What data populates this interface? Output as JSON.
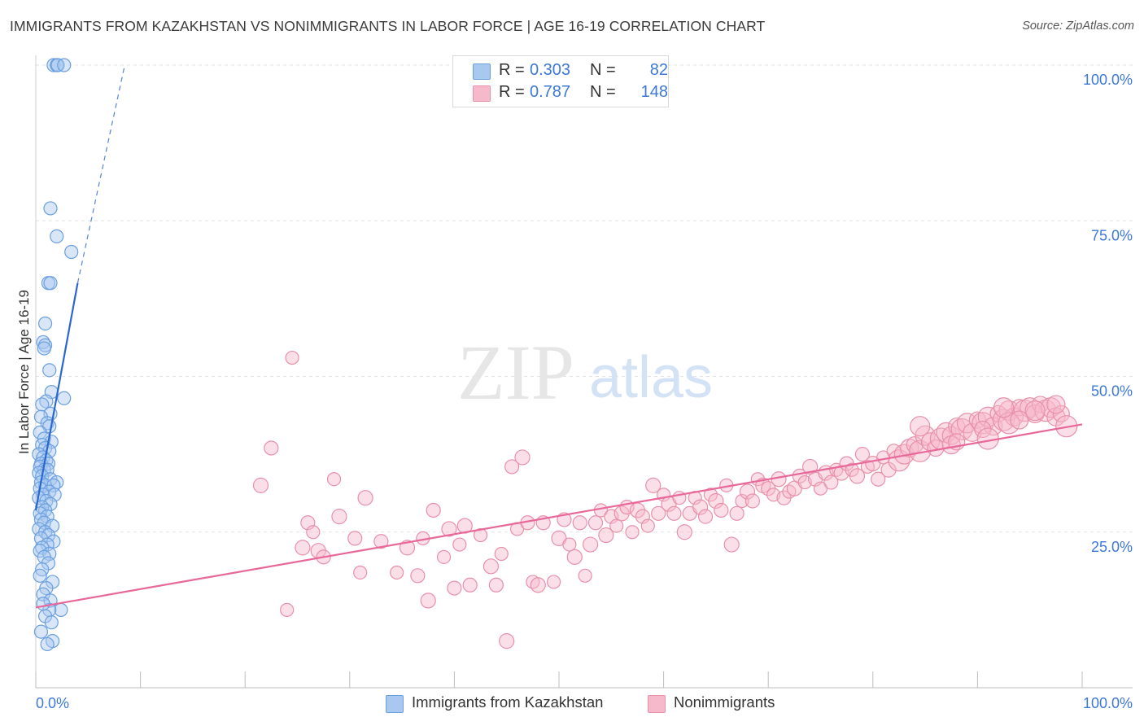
{
  "title": "IMMIGRANTS FROM KAZAKHSTAN VS NONIMMIGRANTS IN LABOR FORCE | AGE 16-19 CORRELATION CHART",
  "source": "Source: ZipAtlas.com",
  "watermark": {
    "zip": "ZIP",
    "atlas": "atlas"
  },
  "legend": {
    "rows": [
      {
        "r_label": "R =",
        "r_value": "0.303",
        "n_label": "N =",
        "n_value": "82",
        "color": "#a8c8f0"
      },
      {
        "r_label": "R =",
        "r_value": "0.787",
        "n_label": "N =",
        "n_value": "148",
        "color": "#f6b8cb"
      }
    ]
  },
  "bottom_legend": [
    {
      "label": "Immigrants from Kazakhstan",
      "color": "#a8c8f0"
    },
    {
      "label": "Nonimmigrants",
      "color": "#f6b8cb"
    }
  ],
  "colors": {
    "blue_fill": "#a8c8f0",
    "blue_stroke": "#6a9fe0",
    "blue_line": "#2a68d0",
    "pink_fill": "#f6b8cb",
    "pink_stroke": "#e890aa",
    "pink_line": "#e8689a",
    "axis_text": "#3d78d8",
    "grid": "#e2e2e2"
  },
  "chart_data": {
    "type": "scatter",
    "title": "IMMIGRANTS FROM KAZAKHSTAN VS NONIMMIGRANTS IN LABOR FORCE | AGE 16-19 CORRELATION CHART",
    "xlabel": "",
    "ylabel": "In Labor Force | Age 16-19",
    "xlim": [
      0,
      100
    ],
    "ylim": [
      0,
      100
    ],
    "x_ticks_labeled": [
      "0.0%",
      "100.0%"
    ],
    "y_ticks": [
      25,
      50,
      75,
      100
    ],
    "y_tick_labels": [
      "25.0%",
      "50.0%",
      "75.0%",
      "100.0%"
    ],
    "grid": true,
    "legend_position": "top-center",
    "series": [
      {
        "name": "Immigrants from Kazakhstan",
        "color": "#a8c8f0",
        "trend": {
          "x": [
            0.0,
            4.0
          ],
          "y": [
            28.5,
            65.0
          ],
          "dashed_extension_to": [
            8.5,
            100.0
          ]
        },
        "points": [
          [
            1.7,
            100
          ],
          [
            2.0,
            100
          ],
          [
            2.1,
            100
          ],
          [
            2.7,
            100
          ],
          [
            1.4,
            77.0
          ],
          [
            2.0,
            72.5
          ],
          [
            3.4,
            70.0
          ],
          [
            1.2,
            65.0
          ],
          [
            1.4,
            65.0
          ],
          [
            0.9,
            58.5
          ],
          [
            0.7,
            55.5
          ],
          [
            0.9,
            55.0
          ],
          [
            0.8,
            54.5
          ],
          [
            1.3,
            51.0
          ],
          [
            1.5,
            47.5
          ],
          [
            2.7,
            46.5
          ],
          [
            1.0,
            46.0
          ],
          [
            0.6,
            45.5
          ],
          [
            1.4,
            44.0
          ],
          [
            0.5,
            43.5
          ],
          [
            1.1,
            42.5
          ],
          [
            1.3,
            42.0
          ],
          [
            0.4,
            41.0
          ],
          [
            0.8,
            40.0
          ],
          [
            1.5,
            39.5
          ],
          [
            0.6,
            39.0
          ],
          [
            0.9,
            38.5
          ],
          [
            1.3,
            38.0
          ],
          [
            0.3,
            37.5
          ],
          [
            0.7,
            37.0
          ],
          [
            1.0,
            36.5
          ],
          [
            0.5,
            36.0
          ],
          [
            1.2,
            36.0
          ],
          [
            0.4,
            35.5
          ],
          [
            0.8,
            35.0
          ],
          [
            1.1,
            35.0
          ],
          [
            0.3,
            34.5
          ],
          [
            0.6,
            34.0
          ],
          [
            1.4,
            33.5
          ],
          [
            2.0,
            33.0
          ],
          [
            0.5,
            33.0
          ],
          [
            0.9,
            32.5
          ],
          [
            1.7,
            32.5
          ],
          [
            0.4,
            32.0
          ],
          [
            1.3,
            31.5
          ],
          [
            0.7,
            31.0
          ],
          [
            1.8,
            31.0
          ],
          [
            0.3,
            30.5
          ],
          [
            1.0,
            30.0
          ],
          [
            1.4,
            29.5
          ],
          [
            0.6,
            29.0
          ],
          [
            0.9,
            28.5
          ],
          [
            0.4,
            28.0
          ],
          [
            1.1,
            27.5
          ],
          [
            0.5,
            27.0
          ],
          [
            0.8,
            26.5
          ],
          [
            1.6,
            26.0
          ],
          [
            0.3,
            25.5
          ],
          [
            0.9,
            25.0
          ],
          [
            1.2,
            24.5
          ],
          [
            0.5,
            24.0
          ],
          [
            1.7,
            23.5
          ],
          [
            1.1,
            23.0
          ],
          [
            0.6,
            22.5
          ],
          [
            0.4,
            22.0
          ],
          [
            1.3,
            21.5
          ],
          [
            0.8,
            21.0
          ],
          [
            1.2,
            20.0
          ],
          [
            0.6,
            19.0
          ],
          [
            1.6,
            17.0
          ],
          [
            1.0,
            16.0
          ],
          [
            0.7,
            15.0
          ],
          [
            1.4,
            14.0
          ],
          [
            2.4,
            12.5
          ],
          [
            1.3,
            12.5
          ],
          [
            0.9,
            11.5
          ],
          [
            1.5,
            10.5
          ],
          [
            1.6,
            7.5
          ],
          [
            1.1,
            7.0
          ],
          [
            0.5,
            9.0
          ],
          [
            0.7,
            13.5
          ],
          [
            0.4,
            18.0
          ]
        ]
      },
      {
        "name": "Nonimmigrants",
        "color": "#f6b8cb",
        "trend": {
          "x": [
            0.0,
            100.0
          ],
          "y": [
            12.9,
            42.3
          ]
        },
        "points": [
          [
            24.0,
            12.5
          ],
          [
            21.5,
            32.5
          ],
          [
            22.5,
            38.5
          ],
          [
            24.5,
            53.0
          ],
          [
            25.5,
            22.5
          ],
          [
            26.0,
            26.5
          ],
          [
            26.5,
            25.0
          ],
          [
            27.0,
            22.0
          ],
          [
            27.5,
            21.0
          ],
          [
            28.5,
            33.5
          ],
          [
            29.0,
            27.5
          ],
          [
            30.5,
            24.0
          ],
          [
            31.0,
            18.5
          ],
          [
            31.5,
            30.5
          ],
          [
            33.0,
            23.5
          ],
          [
            34.5,
            18.5
          ],
          [
            35.5,
            22.5
          ],
          [
            36.5,
            18.0
          ],
          [
            37.0,
            24.0
          ],
          [
            37.5,
            14.0
          ],
          [
            38.0,
            28.5
          ],
          [
            39.0,
            21.0
          ],
          [
            39.5,
            25.5
          ],
          [
            40.0,
            16.0
          ],
          [
            40.5,
            23.0
          ],
          [
            41.0,
            26.0
          ],
          [
            41.5,
            16.5
          ],
          [
            42.5,
            24.5
          ],
          [
            43.5,
            19.5
          ],
          [
            44.0,
            16.5
          ],
          [
            44.5,
            21.5
          ],
          [
            45.0,
            7.5
          ],
          [
            45.5,
            35.5
          ],
          [
            46.0,
            25.5
          ],
          [
            46.5,
            37.0
          ],
          [
            47.0,
            26.5
          ],
          [
            47.5,
            17.0
          ],
          [
            48.0,
            16.5
          ],
          [
            48.5,
            26.5
          ],
          [
            49.5,
            17.0
          ],
          [
            50.0,
            24.0
          ],
          [
            50.5,
            27.0
          ],
          [
            51.0,
            23.0
          ],
          [
            51.5,
            21.0
          ],
          [
            52.0,
            26.5
          ],
          [
            52.5,
            18.0
          ],
          [
            53.0,
            23.0
          ],
          [
            53.5,
            26.5
          ],
          [
            54.0,
            28.5
          ],
          [
            54.5,
            24.5
          ],
          [
            55.0,
            27.5
          ],
          [
            55.5,
            26.0
          ],
          [
            56.0,
            28.0
          ],
          [
            56.5,
            29.0
          ],
          [
            57.0,
            25.0
          ],
          [
            57.5,
            28.5
          ],
          [
            58.0,
            27.5
          ],
          [
            58.5,
            26.0
          ],
          [
            59.0,
            32.5
          ],
          [
            59.5,
            28.0
          ],
          [
            60.0,
            31.0
          ],
          [
            60.5,
            29.5
          ],
          [
            61.0,
            28.0
          ],
          [
            61.5,
            30.5
          ],
          [
            62.0,
            25.0
          ],
          [
            62.5,
            28.0
          ],
          [
            63.0,
            30.5
          ],
          [
            63.5,
            29.0
          ],
          [
            64.0,
            27.5
          ],
          [
            64.5,
            31.0
          ],
          [
            65.0,
            30.0
          ],
          [
            65.5,
            28.5
          ],
          [
            66.0,
            32.5
          ],
          [
            66.5,
            23.0
          ],
          [
            67.0,
            28.0
          ],
          [
            67.5,
            30.0
          ],
          [
            68.0,
            31.5
          ],
          [
            68.5,
            30.0
          ],
          [
            69.0,
            33.5
          ],
          [
            69.5,
            32.5
          ],
          [
            70.0,
            32.0
          ],
          [
            70.5,
            31.0
          ],
          [
            71.0,
            33.5
          ],
          [
            71.5,
            30.5
          ],
          [
            72.0,
            31.5
          ],
          [
            72.5,
            32.0
          ],
          [
            73.0,
            34.0
          ],
          [
            73.5,
            33.0
          ],
          [
            74.0,
            35.5
          ],
          [
            74.5,
            33.5
          ],
          [
            75.0,
            32.0
          ],
          [
            75.5,
            34.5
          ],
          [
            76.0,
            33.0
          ],
          [
            76.5,
            35.0
          ],
          [
            77.0,
            34.5
          ],
          [
            77.5,
            36.0
          ],
          [
            78.0,
            35.0
          ],
          [
            78.5,
            34.0
          ],
          [
            79.0,
            37.5
          ],
          [
            79.5,
            35.5
          ],
          [
            80.0,
            36.0
          ],
          [
            80.5,
            33.5
          ],
          [
            81.0,
            37.0
          ],
          [
            81.5,
            35.0
          ],
          [
            82.0,
            38.0
          ],
          [
            82.5,
            36.5
          ],
          [
            83.0,
            37.5
          ],
          [
            83.5,
            38.5
          ],
          [
            84.0,
            39.0
          ],
          [
            84.5,
            38.0
          ],
          [
            85.0,
            40.5
          ],
          [
            85.5,
            39.5
          ],
          [
            86.0,
            38.5
          ],
          [
            86.5,
            40.0
          ],
          [
            87.0,
            41.0
          ],
          [
            87.5,
            40.5
          ],
          [
            88.0,
            42.0
          ],
          [
            88.5,
            41.5
          ],
          [
            89.0,
            42.5
          ],
          [
            89.5,
            41.0
          ],
          [
            90.0,
            43.0
          ],
          [
            90.5,
            42.5
          ],
          [
            91.0,
            43.5
          ],
          [
            91.5,
            42.0
          ],
          [
            92.0,
            44.0
          ],
          [
            92.5,
            43.0
          ],
          [
            93.0,
            44.5
          ],
          [
            93.5,
            43.5
          ],
          [
            94.0,
            45.0
          ],
          [
            94.5,
            44.5
          ],
          [
            95.0,
            45.0
          ],
          [
            95.5,
            44.0
          ],
          [
            96.0,
            45.5
          ],
          [
            96.5,
            44.5
          ],
          [
            97.0,
            45.0
          ],
          [
            97.5,
            43.5
          ],
          [
            98.0,
            44.0
          ],
          [
            98.5,
            42.0
          ],
          [
            84.5,
            42.0
          ],
          [
            87.5,
            39.0
          ],
          [
            90.5,
            41.5
          ],
          [
            93.0,
            42.5
          ],
          [
            95.5,
            44.5
          ],
          [
            97.5,
            45.5
          ],
          [
            88.0,
            39.5
          ],
          [
            91.0,
            40.0
          ],
          [
            92.5,
            45.0
          ],
          [
            94.0,
            43.0
          ]
        ]
      }
    ]
  }
}
